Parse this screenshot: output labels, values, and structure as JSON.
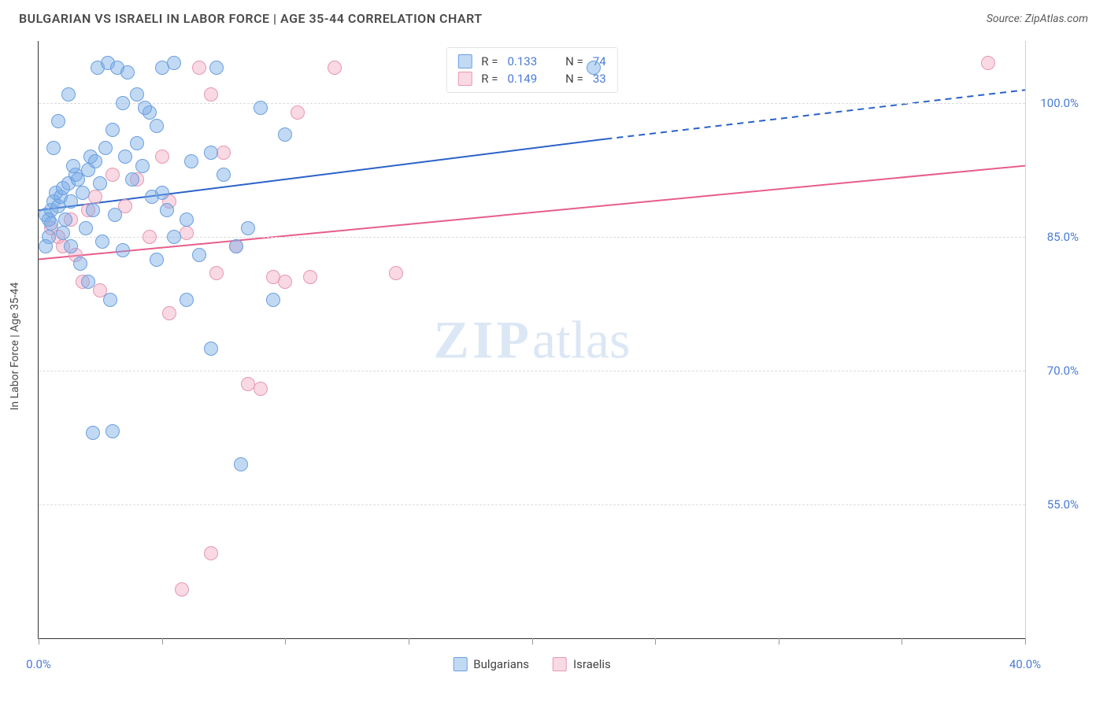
{
  "header": {
    "title": "BULGARIAN VS ISRAELI IN LABOR FORCE | AGE 35-44 CORRELATION CHART",
    "source": "Source: ZipAtlas.com"
  },
  "chart": {
    "type": "scatter",
    "ylabel": "In Labor Force | Age 35-44",
    "watermark_zip": "ZIP",
    "watermark_atlas": "atlas",
    "background_color": "#ffffff",
    "grid_color": "#dcdcdc",
    "axis_color": "#333333",
    "tick_label_color": "#4a7bd6",
    "xlim": [
      0.0,
      40.0
    ],
    "ylim": [
      40.0,
      107.0
    ],
    "y_ticks": [
      55.0,
      70.0,
      85.0,
      100.0
    ],
    "y_tick_labels": [
      "55.0%",
      "70.0%",
      "85.0%",
      "100.0%"
    ],
    "x_ticks": [
      0.0,
      5.0,
      10.0,
      15.0,
      20.0,
      25.0,
      30.0,
      35.0,
      40.0
    ],
    "x_tick_labels_shown": {
      "0.0": "0.0%",
      "40.0": "40.0%"
    },
    "marker_radius": 9,
    "marker_stroke_width": 1,
    "series": {
      "bulgarians": {
        "label": "Bulgarians",
        "fill": "rgba(120,170,230,0.45)",
        "stroke": "#6a9fe0",
        "trend_color": "#2a62c8",
        "trend_width": 2,
        "trend_start": [
          0.0,
          88.0
        ],
        "trend_solid_end": [
          23.0,
          96.0
        ],
        "trend_dashed_end": [
          40.0,
          101.5
        ],
        "points": [
          [
            0.3,
            87.5
          ],
          [
            0.5,
            88.0
          ],
          [
            0.4,
            87.0
          ],
          [
            0.6,
            89.0
          ],
          [
            0.8,
            88.5
          ],
          [
            0.5,
            86.5
          ],
          [
            0.4,
            85.0
          ],
          [
            0.7,
            90.0
          ],
          [
            0.9,
            89.5
          ],
          [
            0.3,
            84.0
          ],
          [
            1.0,
            90.5
          ],
          [
            1.2,
            91.0
          ],
          [
            1.3,
            89.0
          ],
          [
            1.5,
            92.0
          ],
          [
            1.0,
            85.5
          ],
          [
            1.1,
            87.0
          ],
          [
            1.4,
            93.0
          ],
          [
            1.6,
            91.5
          ],
          [
            1.8,
            90.0
          ],
          [
            1.3,
            84.0
          ],
          [
            2.0,
            92.5
          ],
          [
            2.1,
            94.0
          ],
          [
            2.3,
            93.5
          ],
          [
            2.5,
            91.0
          ],
          [
            1.9,
            86.0
          ],
          [
            2.2,
            88.0
          ],
          [
            2.7,
            95.0
          ],
          [
            2.6,
            84.5
          ],
          [
            3.0,
            97.0
          ],
          [
            3.5,
            94.0
          ],
          [
            3.1,
            87.5
          ],
          [
            1.7,
            82.0
          ],
          [
            2.0,
            80.0
          ],
          [
            2.9,
            78.0
          ],
          [
            4.0,
            95.5
          ],
          [
            4.2,
            93.0
          ],
          [
            4.5,
            99.0
          ],
          [
            4.8,
            97.5
          ],
          [
            2.4,
            104.0
          ],
          [
            2.8,
            104.5
          ],
          [
            3.2,
            104.0
          ],
          [
            3.6,
            103.5
          ],
          [
            5.0,
            104.0
          ],
          [
            5.5,
            104.5
          ],
          [
            3.4,
            100.0
          ],
          [
            4.0,
            101.0
          ],
          [
            4.3,
            99.5
          ],
          [
            5.0,
            90.0
          ],
          [
            5.2,
            88.0
          ],
          [
            5.5,
            85.0
          ],
          [
            6.0,
            87.0
          ],
          [
            6.5,
            83.0
          ],
          [
            6.2,
            93.5
          ],
          [
            7.0,
            94.5
          ],
          [
            7.5,
            92.0
          ],
          [
            7.2,
            104.0
          ],
          [
            8.0,
            84.0
          ],
          [
            8.5,
            86.0
          ],
          [
            9.0,
            99.5
          ],
          [
            10.0,
            96.5
          ],
          [
            9.5,
            78.0
          ],
          [
            7.0,
            72.5
          ],
          [
            2.2,
            63.0
          ],
          [
            3.0,
            63.2
          ],
          [
            3.4,
            83.5
          ],
          [
            4.8,
            82.5
          ],
          [
            8.2,
            59.5
          ],
          [
            6.0,
            78.0
          ],
          [
            4.6,
            89.5
          ],
          [
            3.8,
            91.5
          ],
          [
            1.2,
            101.0
          ],
          [
            0.8,
            98.0
          ],
          [
            0.6,
            95.0
          ],
          [
            22.5,
            104.0
          ]
        ]
      },
      "israelis": {
        "label": "Israelis",
        "fill": "rgba(240,160,185,0.40)",
        "stroke": "#e698b0",
        "trend_color": "#e75d8b",
        "trend_width": 2,
        "trend_start": [
          0.0,
          82.5
        ],
        "trend_solid_end": [
          40.0,
          93.0
        ],
        "points": [
          [
            0.5,
            86.0
          ],
          [
            0.8,
            85.0
          ],
          [
            1.0,
            84.0
          ],
          [
            1.3,
            87.0
          ],
          [
            1.5,
            83.0
          ],
          [
            1.8,
            80.0
          ],
          [
            2.0,
            88.0
          ],
          [
            2.3,
            89.5
          ],
          [
            2.5,
            79.0
          ],
          [
            3.0,
            92.0
          ],
          [
            3.5,
            88.5
          ],
          [
            4.0,
            91.5
          ],
          [
            4.5,
            85.0
          ],
          [
            5.0,
            94.0
          ],
          [
            5.3,
            89.0
          ],
          [
            6.0,
            85.5
          ],
          [
            6.5,
            104.0
          ],
          [
            7.0,
            101.0
          ],
          [
            7.5,
            94.5
          ],
          [
            7.2,
            81.0
          ],
          [
            8.0,
            84.0
          ],
          [
            8.5,
            68.5
          ],
          [
            9.5,
            80.5
          ],
          [
            10.0,
            80.0
          ],
          [
            10.5,
            99.0
          ],
          [
            11.0,
            80.5
          ],
          [
            12.0,
            104.0
          ],
          [
            14.5,
            81.0
          ],
          [
            9.0,
            68.0
          ],
          [
            7.0,
            49.5
          ],
          [
            5.8,
            45.5
          ],
          [
            5.3,
            76.5
          ],
          [
            38.5,
            104.5
          ]
        ]
      }
    },
    "stat_legend": {
      "rows": [
        {
          "series": "bulgarians",
          "R_label": "R =",
          "R": "0.133",
          "N_label": "N =",
          "N": "74"
        },
        {
          "series": "israelis",
          "R_label": "R =",
          "R": "0.149",
          "N_label": "N =",
          "N": "33"
        }
      ]
    }
  }
}
